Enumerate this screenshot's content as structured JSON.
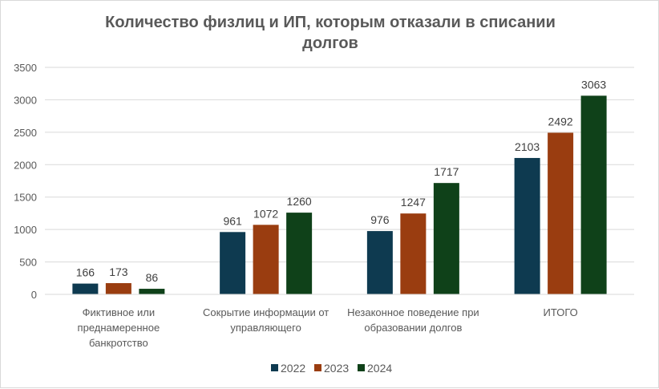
{
  "chart_data": {
    "type": "bar",
    "title_lines": [
      "Количество физлиц и ИП, которым отказали в списании",
      "долгов"
    ],
    "categories": [
      [
        "Фиктивное или",
        "преднамеренное",
        "банкротство"
      ],
      [
        "Сокрытие информации от",
        "управляющего"
      ],
      [
        "Незаконное поведение при",
        "образовании долгов"
      ],
      [
        "ИТОГО"
      ]
    ],
    "series": [
      {
        "name": "2022",
        "color": "#0e3a50",
        "values": [
          166,
          961,
          976,
          2103
        ]
      },
      {
        "name": "2023",
        "color": "#9a3d10",
        "values": [
          173,
          1072,
          1247,
          2492
        ]
      },
      {
        "name": "2024",
        "color": "#0f4119",
        "values": [
          86,
          1260,
          1717,
          3063
        ]
      }
    ],
    "ylim": [
      0,
      3500
    ],
    "yticks": [
      0,
      500,
      1000,
      1500,
      2000,
      2500,
      3000,
      3500
    ],
    "grid": true,
    "data_labels": true,
    "legend_position": "bottom"
  }
}
